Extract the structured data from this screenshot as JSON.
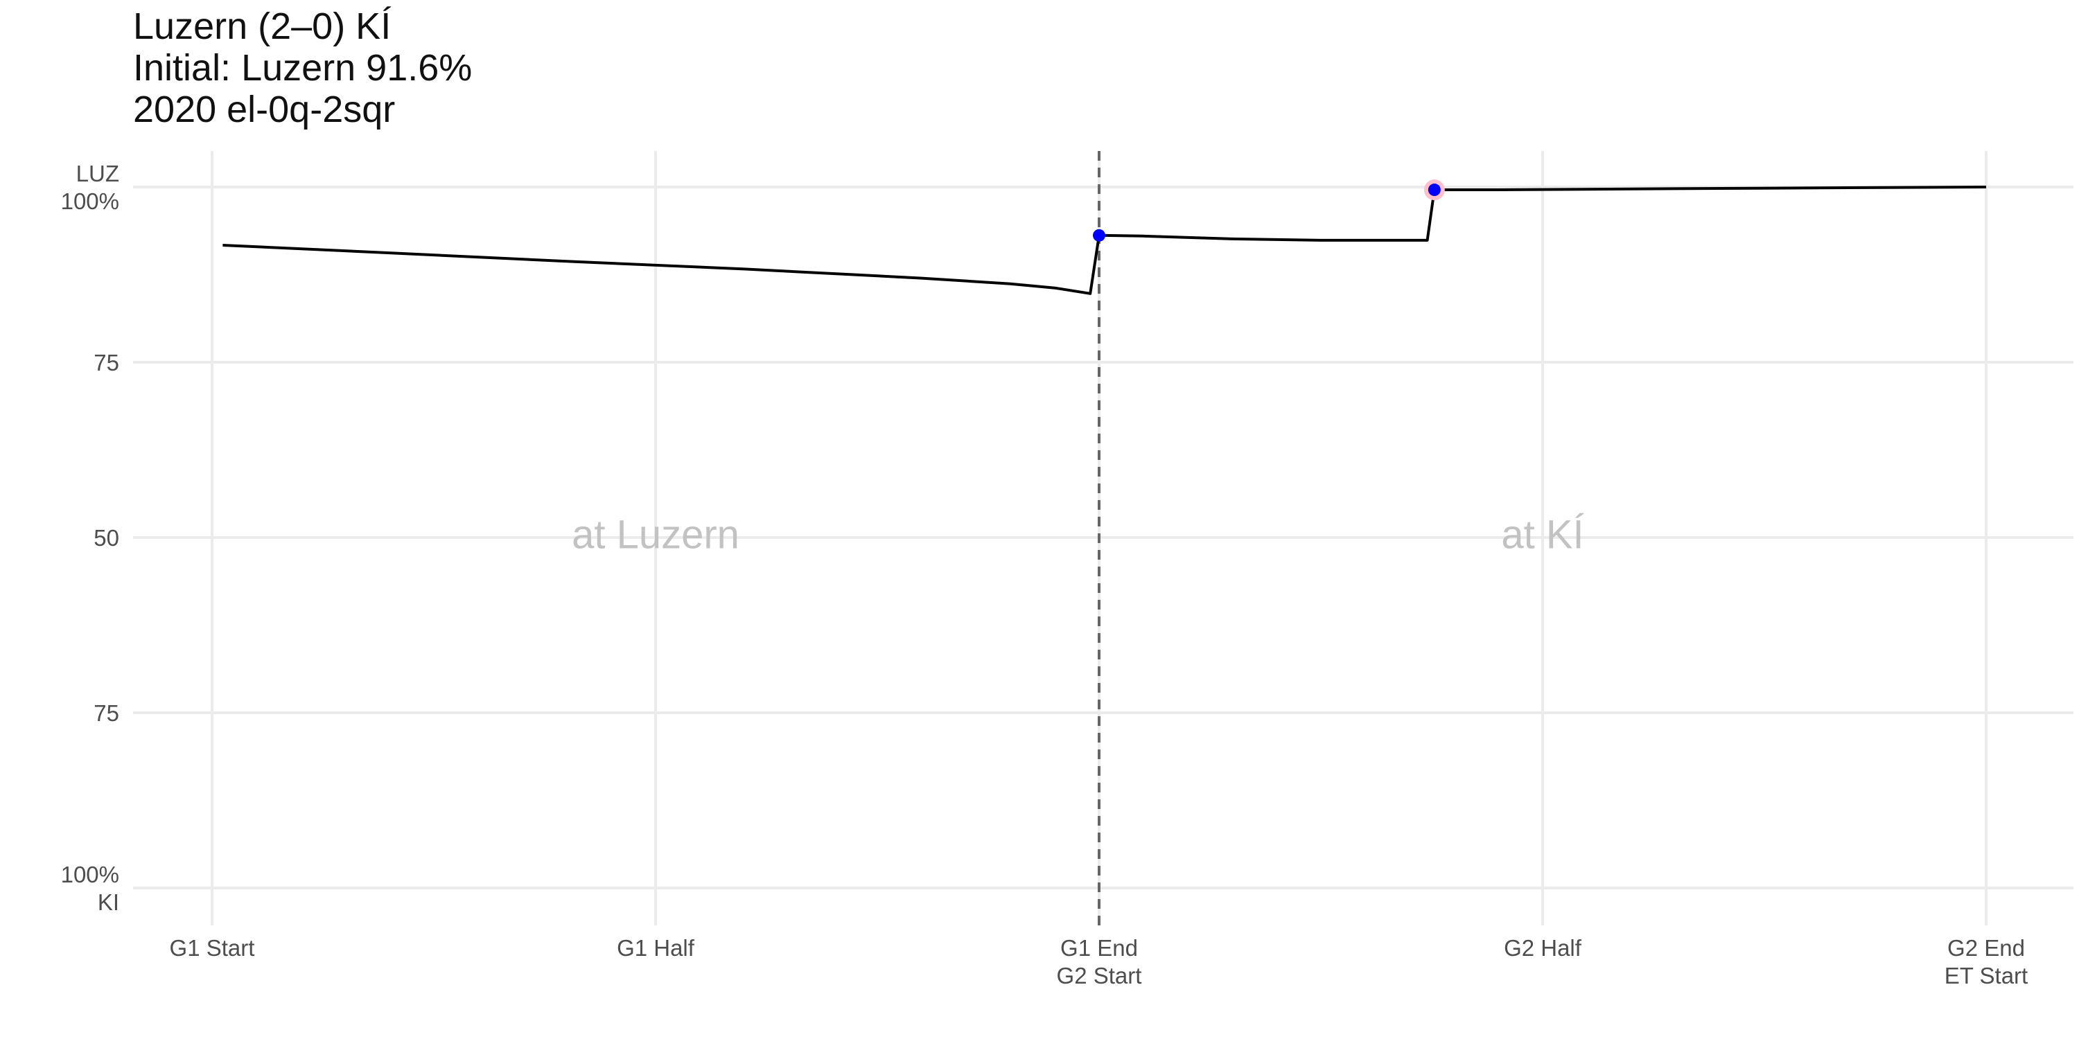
{
  "title": {
    "line1": "Luzern (2–0) KÍ",
    "line2": "Initial: Luzern 91.6%",
    "line3": "2020 el-0q-2sqr"
  },
  "chart_data": {
    "type": "line",
    "x_ticks": [
      {
        "x": 0,
        "labels": [
          "G1 Start"
        ]
      },
      {
        "x": 0.5,
        "labels": [
          "G1 Half"
        ]
      },
      {
        "x": 1,
        "labels": [
          "G1 End",
          "G2 Start"
        ]
      },
      {
        "x": 1.5,
        "labels": [
          "G2 Half"
        ]
      },
      {
        "x": 2,
        "labels": [
          "G2 End",
          "ET Start"
        ]
      }
    ],
    "y_ticks": [
      {
        "y": 100,
        "labels": [
          "LUZ",
          "100%"
        ]
      },
      {
        "y": 75,
        "labels": [
          "75"
        ]
      },
      {
        "y": 50,
        "labels": [
          "50"
        ]
      },
      {
        "y": 25,
        "labels": [
          "75"
        ]
      },
      {
        "y": 0,
        "labels": [
          "100%",
          "KI"
        ]
      }
    ],
    "xlim": [
      0,
      2
    ],
    "ylim": [
      0,
      100
    ],
    "grid": true,
    "venues": [
      {
        "x": 0.5,
        "y": 50,
        "label": "at Luzern"
      },
      {
        "x": 1.5,
        "y": 50,
        "label": "at KÍ"
      }
    ],
    "divider_x": 1,
    "series": [
      {
        "color": "#000000",
        "points": [
          [
            0.012,
            91.7
          ],
          [
            0.2,
            90.6
          ],
          [
            0.4,
            89.4
          ],
          [
            0.6,
            88.3
          ],
          [
            0.8,
            87.0
          ],
          [
            0.9,
            86.2
          ],
          [
            0.95,
            85.6
          ],
          [
            0.99,
            84.8
          ],
          [
            1.0,
            93.1
          ],
          [
            1.05,
            93.0
          ],
          [
            1.15,
            92.6
          ],
          [
            1.25,
            92.4
          ],
          [
            1.32,
            92.4
          ],
          [
            1.37,
            92.4
          ],
          [
            1.378,
            99.6
          ],
          [
            1.45,
            99.6
          ],
          [
            1.7,
            99.8
          ],
          [
            2.0,
            100.0
          ]
        ]
      }
    ],
    "goal_markers": [
      {
        "x": 1.0,
        "y": 93.1,
        "color": "#0000ff",
        "halo": false
      },
      {
        "x": 1.378,
        "y": 99.6,
        "color": "#0000ff",
        "halo": true,
        "halo_color": "#ffc0cb"
      }
    ]
  }
}
